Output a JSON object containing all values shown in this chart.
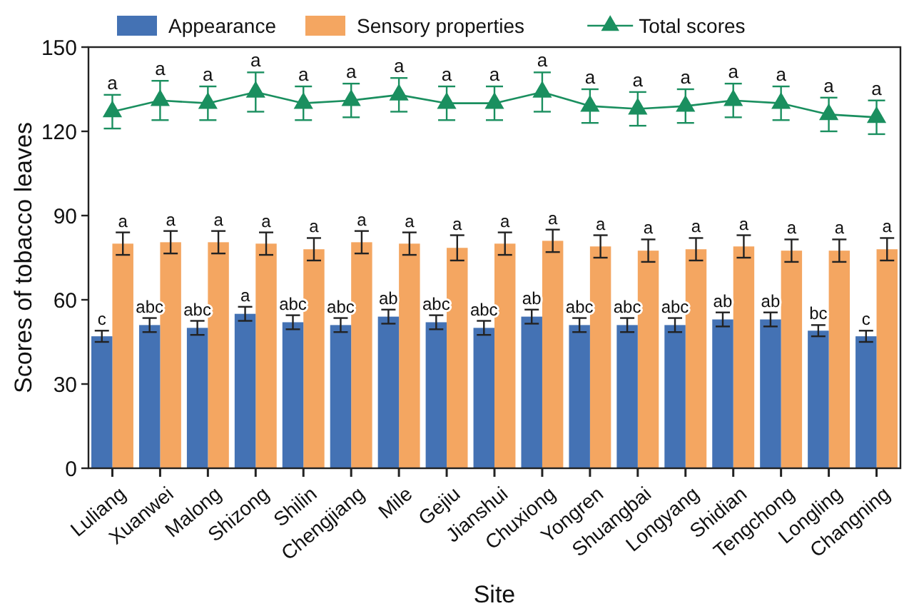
{
  "chart_data": {
    "type": "bar",
    "xlabel": "Site",
    "ylabel": "Scores of tobacco leaves",
    "categories": [
      "Luliang",
      "Xuanwei",
      "Malong",
      "Shizong",
      "Shilin",
      "Chengjiang",
      "Mile",
      "Gejiu",
      "Jianshui",
      "Chuxiong",
      "Yongren",
      "Shuangbai",
      "Longyang",
      "Shidian",
      "Tengchong",
      "Longling",
      "Changning"
    ],
    "series": [
      {
        "name": "Appearance",
        "color": "#4472b4",
        "values": [
          47,
          51,
          50,
          55,
          52,
          51,
          54,
          52,
          50,
          54,
          51,
          51,
          51,
          53,
          53,
          49,
          47
        ],
        "errors": [
          2,
          2.5,
          2.5,
          2.5,
          2.5,
          2.5,
          2.5,
          2.5,
          2.5,
          2.5,
          2.5,
          2.5,
          2.5,
          2.5,
          2.5,
          2,
          2
        ],
        "value_labels": [
          "c",
          "abc",
          "abc",
          "a",
          "abc",
          "abc",
          "ab",
          "abc",
          "abc",
          "ab",
          "abc",
          "abc",
          "abc",
          "ab",
          "ab",
          "bc",
          "c"
        ]
      },
      {
        "name": "Sensory properties",
        "color": "#f4a661",
        "values": [
          80,
          80.5,
          80.5,
          80,
          78,
          80.5,
          80,
          78.5,
          80,
          81,
          79,
          77.5,
          78,
          79,
          77.5,
          77.5,
          78
        ],
        "errors": [
          4,
          4,
          4,
          4,
          4,
          4,
          4,
          4.5,
          4,
          4,
          4,
          4,
          4,
          4,
          4,
          4,
          4
        ],
        "value_labels": [
          "a",
          "a",
          "a",
          "a",
          "a",
          "a",
          "a",
          "a",
          "a",
          "a",
          "a",
          "a",
          "a",
          "a",
          "a",
          "a",
          "a"
        ]
      },
      {
        "name": "Total scores",
        "type": "line",
        "color": "#1a8f5f",
        "marker": "triangle",
        "values": [
          127,
          131,
          130,
          134,
          130,
          131,
          133,
          130,
          130,
          134,
          129,
          128,
          129,
          131,
          130,
          126,
          125
        ],
        "errors": [
          6,
          7,
          6,
          7,
          6,
          6,
          6,
          6,
          6,
          7,
          6,
          6,
          6,
          6,
          6,
          6,
          6
        ],
        "value_labels": [
          "a",
          "a",
          "a",
          "a",
          "a",
          "a",
          "a",
          "a",
          "a",
          "a",
          "a",
          "a",
          "a",
          "a",
          "a",
          "a",
          "a"
        ]
      }
    ],
    "ylim": [
      0,
      150
    ],
    "yticks": [
      0,
      30,
      60,
      90,
      120,
      150
    ],
    "grid": false,
    "legend": "top"
  }
}
